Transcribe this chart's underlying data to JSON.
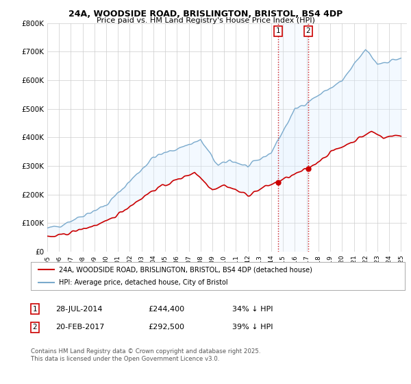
{
  "title_line1": "24A, WOODSIDE ROAD, BRISLINGTON, BRISTOL, BS4 4DP",
  "title_line2": "Price paid vs. HM Land Registry's House Price Index (HPI)",
  "ylim": [
    0,
    800000
  ],
  "yticks": [
    0,
    100000,
    200000,
    300000,
    400000,
    500000,
    600000,
    700000,
    800000
  ],
  "ytick_labels": [
    "£0",
    "£100K",
    "£200K",
    "£300K",
    "£400K",
    "£500K",
    "£600K",
    "£700K",
    "£800K"
  ],
  "legend_label_red": "24A, WOODSIDE ROAD, BRISLINGTON, BRISTOL, BS4 4DP (detached house)",
  "legend_label_blue": "HPI: Average price, detached house, City of Bristol",
  "annotation1_date": "28-JUL-2014",
  "annotation1_price": "£244,400",
  "annotation1_hpi": "34% ↓ HPI",
  "annotation2_date": "20-FEB-2017",
  "annotation2_price": "£292,500",
  "annotation2_hpi": "39% ↓ HPI",
  "footer": "Contains HM Land Registry data © Crown copyright and database right 2025.\nThis data is licensed under the Open Government Licence v3.0.",
  "red_color": "#cc0000",
  "blue_color": "#7aaacc",
  "shade_color": "#ddeeff",
  "vline_color": "#cc0000",
  "bg_color": "#ffffff",
  "grid_color": "#cccccc",
  "marker1_x": 2014.57,
  "marker2_x": 2017.13
}
